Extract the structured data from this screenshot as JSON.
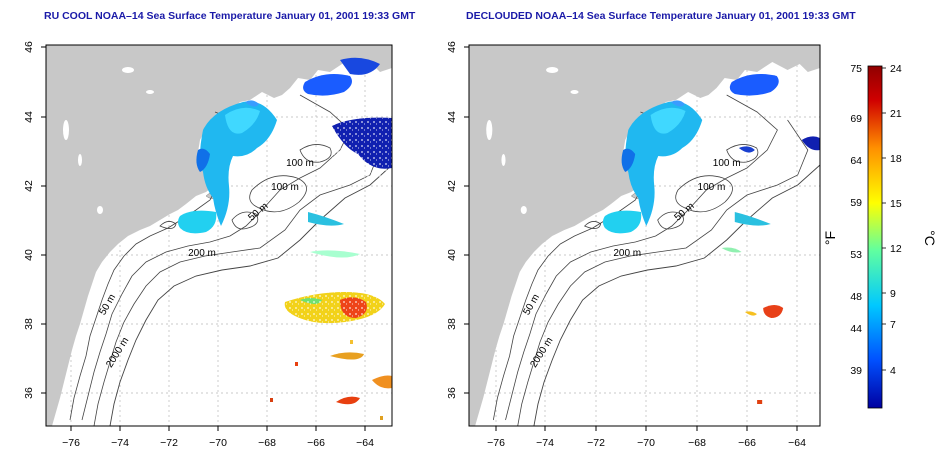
{
  "left_panel": {
    "title": "RU COOL NOAA–14 Sea Surface Temperature January 01, 2001 19:33 GMT"
  },
  "right_panel": {
    "title": "DECLOUDED NOAA–14 Sea Surface Temperature January 01, 2001 19:33 GMT"
  },
  "axes": {
    "x_ticks": [
      "−76",
      "−74",
      "−72",
      "−70",
      "−68",
      "−66",
      "−64"
    ],
    "y_ticks": [
      "46",
      "44",
      "42",
      "40",
      "38",
      "36"
    ],
    "lon_range": [
      -77,
      -63
    ],
    "lat_range": [
      35,
      46
    ]
  },
  "depth_labels": [
    "50 m",
    "100 m",
    "200 m",
    "2000 m"
  ],
  "colorbar": {
    "f_label": "°F",
    "c_label": "°C",
    "f_ticks": [
      "75",
      "69",
      "64",
      "59",
      "53",
      "48",
      "44",
      "39"
    ],
    "c_ticks": [
      "24",
      "21",
      "18",
      "15",
      "12",
      "9",
      "7",
      "4"
    ],
    "colors": [
      "#0000a0",
      "#0050ff",
      "#00c8ff",
      "#60ffa0",
      "#ffff00",
      "#ff9000",
      "#d00000",
      "#900000"
    ]
  },
  "colors": {
    "land": "#c8c8c8",
    "contour": "#444444",
    "grid": "#b8b8b8",
    "title": "#1a1aa8"
  }
}
